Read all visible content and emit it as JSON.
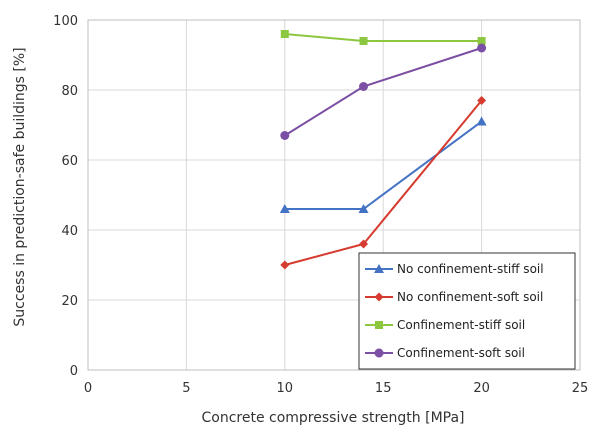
{
  "chart_data": {
    "type": "line",
    "xlabel": "Concrete compressive strength [MPa]",
    "ylabel": "Success in prediction-safe buildings [%]",
    "xlim": [
      0,
      25
    ],
    "ylim": [
      0,
      100
    ],
    "xticks": [
      0,
      5,
      10,
      15,
      20,
      25
    ],
    "yticks": [
      0,
      20,
      40,
      60,
      80,
      100
    ],
    "grid": true,
    "legend_position": "bottom-right",
    "series": [
      {
        "name": "No confinement-stiff soil",
        "color": "#4472c4",
        "marker": "triangle",
        "points": [
          [
            10,
            46
          ],
          [
            14,
            46
          ],
          [
            20,
            71
          ]
        ]
      },
      {
        "name": "No confinement-soft soil",
        "color": "#d63b2f",
        "marker": "diamond",
        "points": [
          [
            10,
            30
          ],
          [
            14,
            36
          ],
          [
            20,
            77
          ]
        ]
      },
      {
        "name": "Confinement-stiff soil",
        "color": "#8dc63f",
        "marker": "square",
        "points": [
          [
            10,
            96
          ],
          [
            14,
            94
          ],
          [
            20,
            94
          ]
        ]
      },
      {
        "name": "Confinement-soft soil",
        "color": "#7b4fa3",
        "marker": "circle",
        "points": [
          [
            10,
            67
          ],
          [
            14,
            81
          ],
          [
            20,
            92
          ]
        ]
      }
    ]
  }
}
